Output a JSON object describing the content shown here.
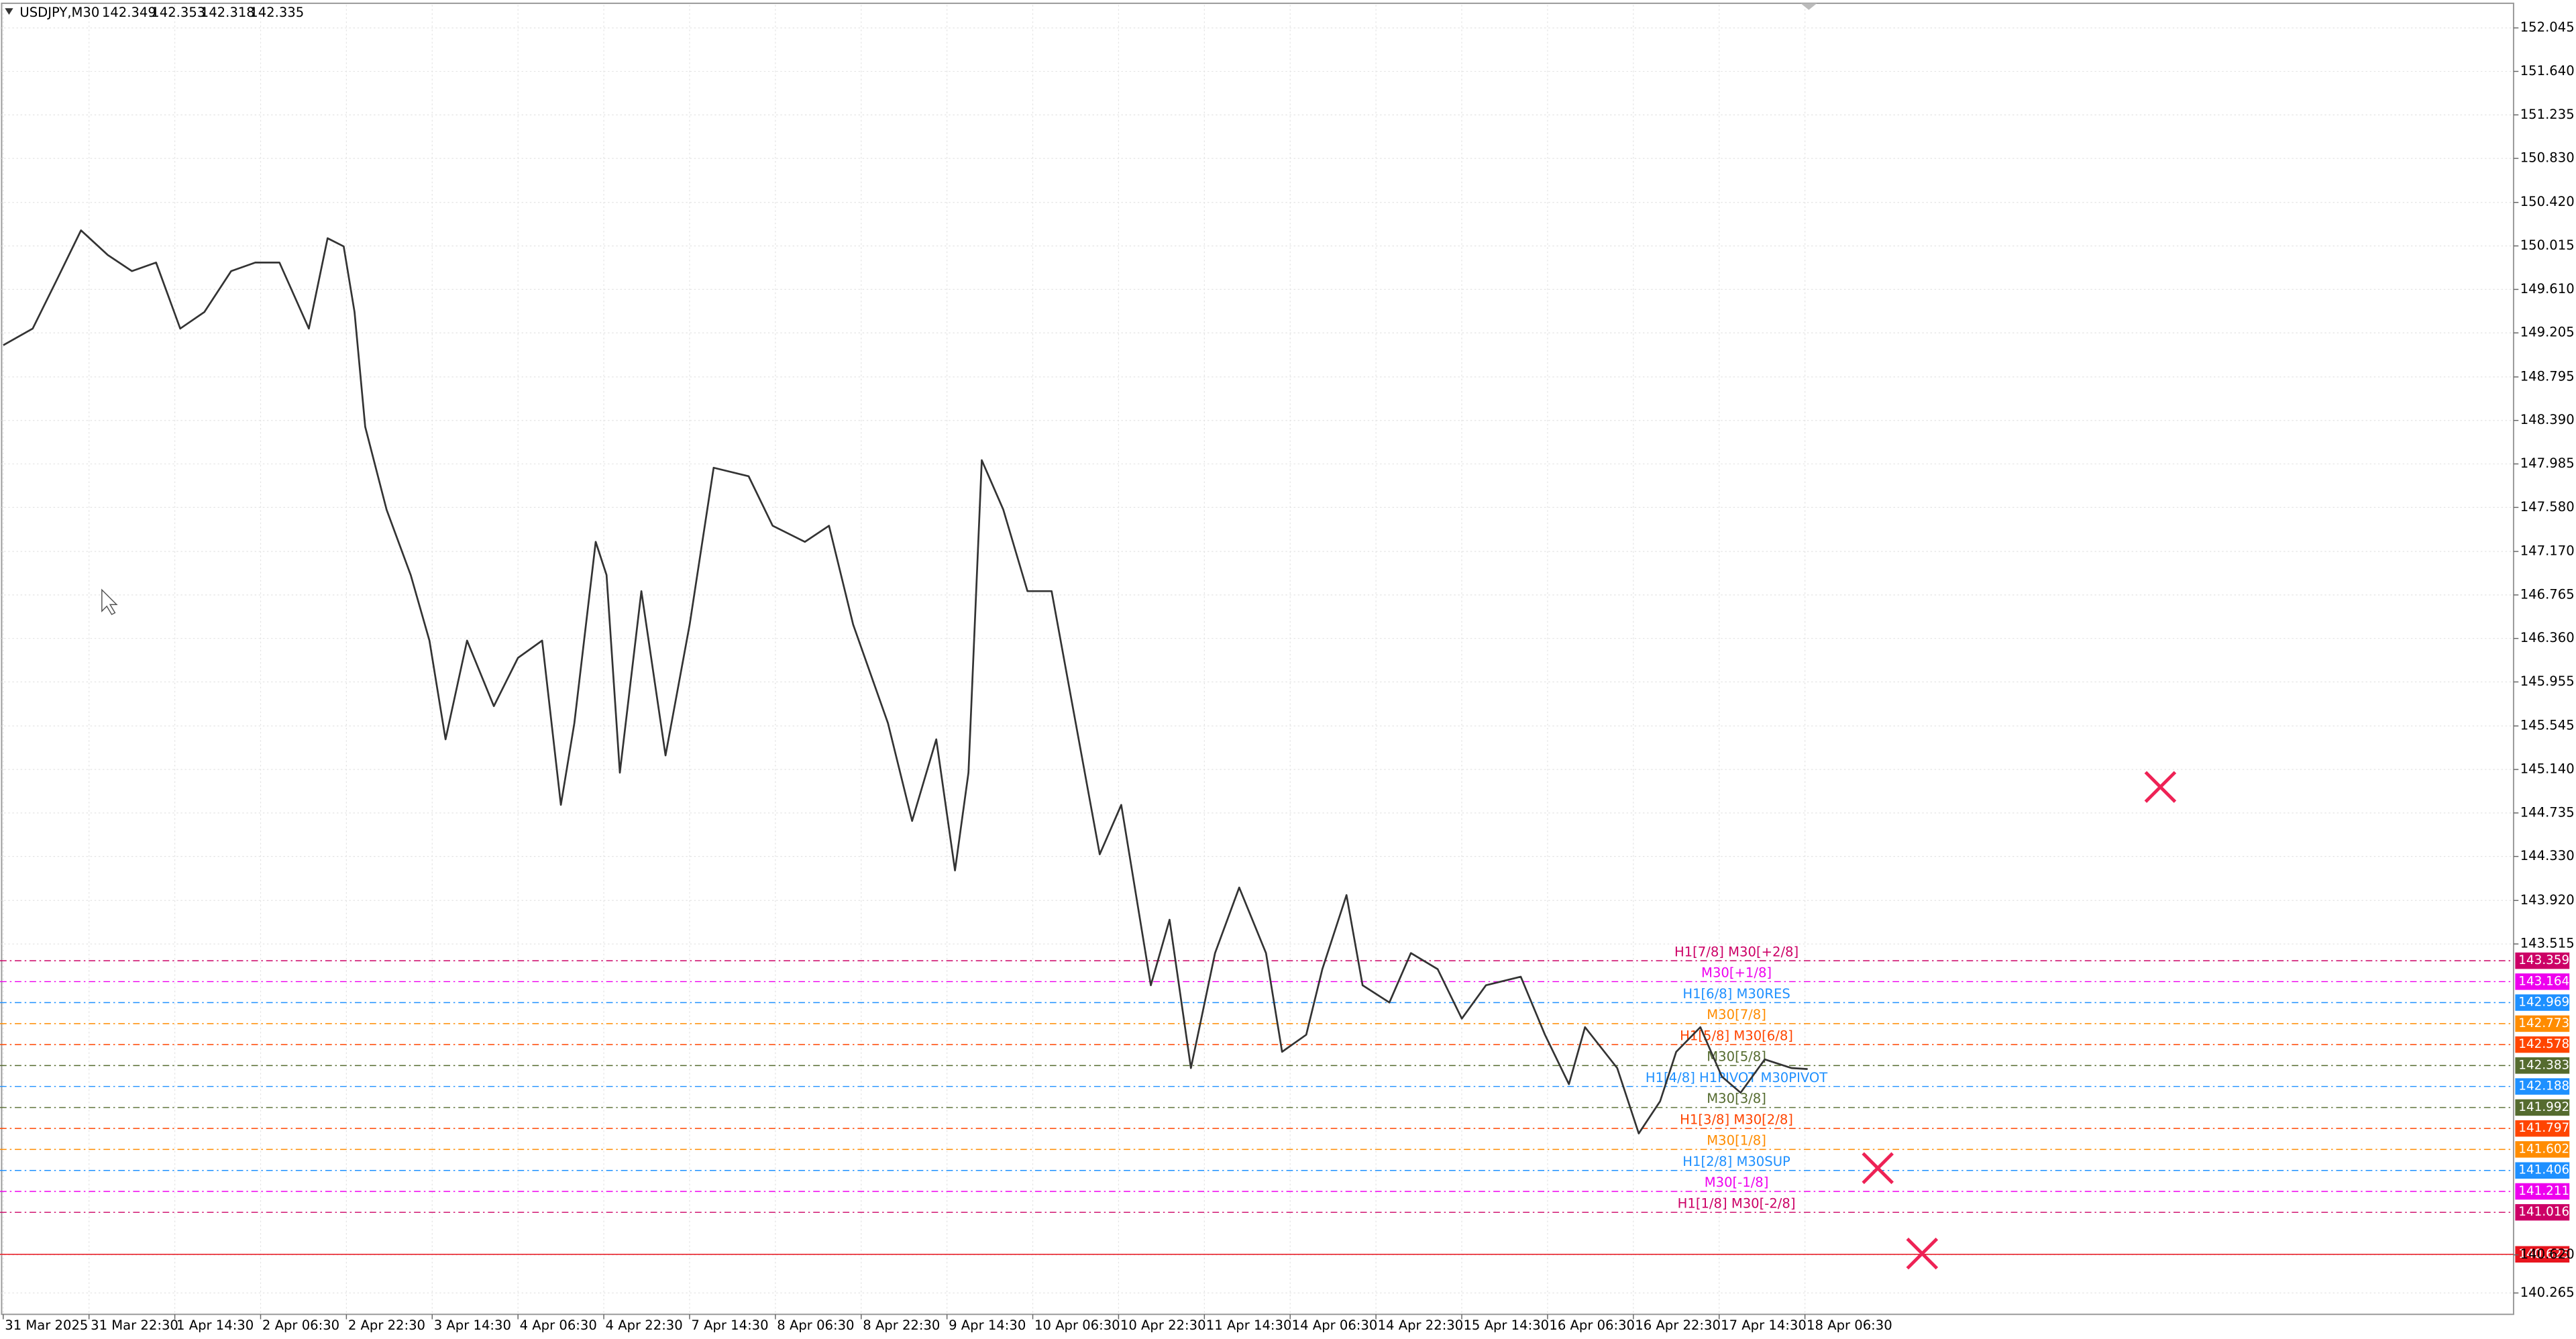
{
  "chart_data": {
    "type": "line",
    "title": "USDJPY,M30",
    "ohlc": [
      142.349,
      142.353,
      142.318,
      142.335
    ],
    "color": "#333333",
    "grid": true,
    "xlim": [
      -1.2,
      936.3
    ],
    "ylim": [
      140.066,
      152.259
    ],
    "x": [
      0,
      11,
      20,
      29,
      39,
      48,
      57,
      66,
      75,
      85,
      94,
      103,
      114,
      121,
      127,
      131,
      135,
      143,
      152,
      159,
      165,
      173,
      183,
      192,
      201,
      208,
      213,
      221,
      225,
      230,
      238,
      247,
      256,
      265,
      278,
      287,
      299,
      308,
      317,
      330,
      339,
      348,
      355,
      360,
      365,
      373,
      382,
      391,
      400,
      409,
      417,
      428,
      435,
      443,
      452,
      461,
      471,
      477,
      486,
      492,
      501,
      507,
      517,
      525,
      535,
      544,
      553,
      566,
      575,
      584,
      590,
      602,
      610,
      618,
      624,
      633,
      641,
      648,
      657,
      667,
      673
    ],
    "values": [
      149.09,
      149.245,
      149.7,
      150.16,
      149.93,
      149.78,
      149.86,
      149.245,
      149.4,
      149.78,
      149.86,
      149.86,
      149.245,
      150.087,
      150.01,
      149.4,
      148.33,
      147.56,
      146.95,
      146.34,
      145.42,
      146.34,
      145.73,
      146.18,
      146.34,
      144.81,
      145.57,
      147.26,
      146.95,
      145.11,
      146.8,
      145.27,
      146.49,
      147.95,
      147.87,
      147.41,
      147.26,
      147.41,
      146.49,
      145.57,
      144.66,
      145.42,
      144.2,
      145.11,
      148.02,
      147.56,
      146.8,
      146.8,
      145.57,
      144.35,
      144.81,
      143.13,
      143.74,
      142.36,
      143.43,
      144.04,
      143.43,
      142.51,
      142.67,
      143.28,
      143.97,
      143.13,
      142.97,
      143.43,
      143.28,
      142.82,
      143.13,
      143.21,
      142.67,
      142.21,
      142.74,
      142.36,
      141.75,
      142.05,
      142.51,
      142.74,
      142.28,
      142.13,
      142.44,
      142.36,
      142.35
    ],
    "xticks": [
      {
        "value": 0,
        "label": "31 Mar 2025"
      },
      {
        "value": 32,
        "label": "31 Mar 22:30"
      },
      {
        "value": 64,
        "label": "1 Apr 14:30"
      },
      {
        "value": 96,
        "label": "2 Apr 06:30"
      },
      {
        "value": 128,
        "label": "2 Apr 22:30"
      },
      {
        "value": 160,
        "label": "3 Apr 14:30"
      },
      {
        "value": 192,
        "label": "4 Apr 06:30"
      },
      {
        "value": 224,
        "label": "4 Apr 22:30"
      },
      {
        "value": 256,
        "label": "7 Apr 14:30"
      },
      {
        "value": 288,
        "label": "8 Apr 06:30"
      },
      {
        "value": 320,
        "label": "8 Apr 22:30"
      },
      {
        "value": 352,
        "label": "9 Apr 14:30"
      },
      {
        "value": 384,
        "label": "10 Apr 06:30"
      },
      {
        "value": 416,
        "label": "10 Apr 22:30"
      },
      {
        "value": 448,
        "label": "11 Apr 14:30"
      },
      {
        "value": 480,
        "label": "14 Apr 06:30"
      },
      {
        "value": 512,
        "label": "14 Apr 22:30"
      },
      {
        "value": 544,
        "label": "15 Apr 14:30"
      },
      {
        "value": 576,
        "label": "16 Apr 06:30"
      },
      {
        "value": 608,
        "label": "16 Apr 22:30"
      },
      {
        "value": 640,
        "label": "17 Apr 14:30"
      },
      {
        "value": 672,
        "label": "18 Apr 06:30"
      }
    ],
    "yticks": [
      {
        "value": 152.045,
        "label": "152.045"
      },
      {
        "value": 151.64,
        "label": "151.640"
      },
      {
        "value": 151.235,
        "label": "151.235"
      },
      {
        "value": 150.83,
        "label": "150.830"
      },
      {
        "value": 150.42,
        "label": "150.420"
      },
      {
        "value": 150.015,
        "label": "150.015"
      },
      {
        "value": 149.61,
        "label": "149.610"
      },
      {
        "value": 149.205,
        "label": "149.205"
      },
      {
        "value": 148.795,
        "label": "148.795"
      },
      {
        "value": 148.39,
        "label": "148.390"
      },
      {
        "value": 147.985,
        "label": "147.985"
      },
      {
        "value": 147.58,
        "label": "147.580"
      },
      {
        "value": 147.17,
        "label": "147.170"
      },
      {
        "value": 146.765,
        "label": "146.765"
      },
      {
        "value": 146.36,
        "label": "146.360"
      },
      {
        "value": 145.955,
        "label": "145.955"
      },
      {
        "value": 145.545,
        "label": "145.545"
      },
      {
        "value": 145.14,
        "label": "145.140"
      },
      {
        "value": 144.735,
        "label": "144.735"
      },
      {
        "value": 144.33,
        "label": "144.330"
      },
      {
        "value": 143.92,
        "label": "143.920"
      },
      {
        "value": 143.515,
        "label": "143.515"
      },
      {
        "value": 140.62,
        "label": "140.620"
      },
      {
        "value": 140.265,
        "label": "140.265"
      }
    ],
    "levels": [
      {
        "label": "H1[7/8] M30[+2/8]",
        "value": 143.359,
        "color": "#cc0066"
      },
      {
        "label": "M30[+1/8]",
        "value": 143.164,
        "color": "#ee00ee"
      },
      {
        "label": "H1[6/8] M30RES",
        "value": 142.969,
        "color": "#1e90ff"
      },
      {
        "label": "M30[7/8]",
        "value": 142.773,
        "color": "#ff8c00"
      },
      {
        "label": "H1[5/8] M30[6/8]",
        "value": 142.578,
        "color": "#ff4500"
      },
      {
        "label": "M30[5/8]",
        "value": 142.383,
        "color": "#556b2f"
      },
      {
        "label": "H1[4/8] H1PIVOT M30PIVOT",
        "value": 142.188,
        "color": "#1e90ff"
      },
      {
        "label": "M30[3/8]",
        "value": 141.992,
        "color": "#556b2f"
      },
      {
        "label": "H1[3/8] M30[2/8]",
        "value": 141.797,
        "color": "#ff4500"
      },
      {
        "label": "M30[1/8]",
        "value": 141.602,
        "color": "#ff8c00"
      },
      {
        "label": "H1[2/8] M30SUP",
        "value": 141.406,
        "color": "#1e90ff"
      },
      {
        "label": "M30[-1/8]",
        "value": 141.211,
        "color": "#ee00ee"
      },
      {
        "label": "H1[1/8] M30[-2/8]",
        "value": 141.016,
        "color": "#cc0066"
      },
      {
        "value": 140.625,
        "color": "#e8141e"
      }
    ]
  }
}
